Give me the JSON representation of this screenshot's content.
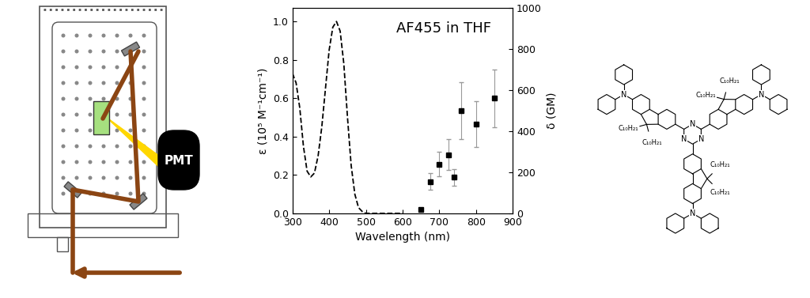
{
  "chart_data": {
    "type": "line",
    "title": "AF455 in THF",
    "x_label": "Wavelength (nm)",
    "y_label": "ε (10⁵ M⁻¹cm⁻¹)",
    "y2_label": "δ (GM)",
    "xlim": [
      300,
      900
    ],
    "xticks": [
      300,
      400,
      500,
      600,
      700,
      800,
      900
    ],
    "ylim": [
      0,
      1.07
    ],
    "yticks": [
      0.0,
      0.2,
      0.4,
      0.6,
      0.8,
      1.0
    ],
    "y2lim": [
      0,
      1000
    ],
    "y2ticks": [
      0,
      200,
      400,
      600,
      800,
      1000
    ],
    "series": [
      {
        "type": "line",
        "color": "#000000",
        "line_style": "dashed",
        "x": [
          300,
          310,
          320,
          330,
          340,
          350,
          360,
          370,
          380,
          390,
          400,
          410,
          420,
          430,
          440,
          450,
          460,
          470,
          480,
          490,
          500,
          550,
          600
        ],
        "values": [
          0.73,
          0.68,
          0.55,
          0.35,
          0.22,
          0.19,
          0.21,
          0.3,
          0.45,
          0.65,
          0.85,
          0.97,
          1.0,
          0.95,
          0.78,
          0.5,
          0.25,
          0.1,
          0.03,
          0.01,
          0.0,
          0.0,
          0.0
        ]
      },
      {
        "type": "scatter",
        "axis": "y2",
        "color": "#000000",
        "marker": "square",
        "x": [
          650,
          675,
          700,
          725,
          740,
          760,
          800,
          850
        ],
        "values": [
          20,
          155,
          240,
          285,
          175,
          500,
          435,
          560
        ],
        "errors": [
          5,
          40,
          60,
          75,
          40,
          140,
          110,
          140
        ]
      }
    ]
  },
  "setup_diagram": {
    "detector_label": "PMT"
  },
  "molecule": {
    "triazine_labels": [
      "N",
      "N",
      "N"
    ],
    "amine_labels": [
      "N",
      "N",
      "N"
    ],
    "alkyl_labels": [
      [
        "C₁₀H₂₁",
        "C₁₀H₂₁"
      ],
      [
        "C₁₀H₂₁",
        "C₁₀H₂₁"
      ],
      [
        "C₁₀H₂₁",
        "C₁₀H₂₁"
      ]
    ]
  }
}
